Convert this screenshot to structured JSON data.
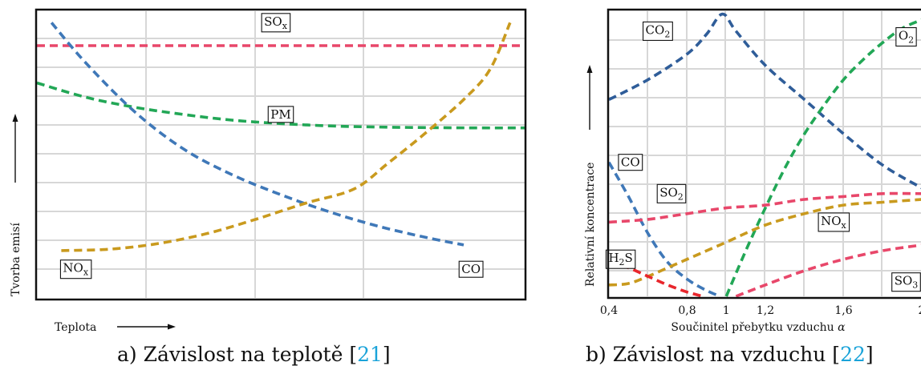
{
  "chart_data": [
    {
      "type": "line",
      "caption_prefix": "a) Závislost na teplotě [",
      "caption_ref": "21",
      "caption_suffix": "]",
      "xlabel": "Teplota",
      "ylabel": "Tvorba emisí",
      "x_ticks": [],
      "y_ticks": [],
      "xlim": [
        0,
        1
      ],
      "ylim": [
        0,
        1
      ],
      "grid": true,
      "series": [
        {
          "name": "SOx",
          "label_main": "SO",
          "label_sub": "x",
          "color": "#e8476a",
          "x": [
            0.0,
            1.0
          ],
          "y": [
            0.88,
            0.88
          ]
        },
        {
          "name": "PM",
          "label_main": "PM",
          "label_sub": "",
          "color": "#22a756",
          "x": [
            0.0,
            0.1,
            0.2,
            0.3,
            0.4,
            0.5,
            0.6,
            0.7,
            0.8,
            0.9,
            1.0
          ],
          "y": [
            0.75,
            0.7,
            0.665,
            0.64,
            0.62,
            0.608,
            0.6,
            0.596,
            0.594,
            0.593,
            0.593
          ]
        },
        {
          "name": "CO",
          "label_main": "CO",
          "label_sub": "",
          "color": "#3f78b8",
          "x": [
            0.03,
            0.1,
            0.2,
            0.3,
            0.4,
            0.5,
            0.6,
            0.7,
            0.8,
            0.875
          ],
          "y": [
            0.96,
            0.82,
            0.65,
            0.52,
            0.43,
            0.36,
            0.3,
            0.25,
            0.21,
            0.185
          ]
        },
        {
          "name": "NOx",
          "label_main": "NO",
          "label_sub": "x",
          "color": "#c99a1e",
          "x": [
            0.05,
            0.15,
            0.25,
            0.35,
            0.45,
            0.55,
            0.65,
            0.72,
            0.8,
            0.88,
            0.93,
            0.97
          ],
          "y": [
            0.165,
            0.17,
            0.19,
            0.225,
            0.275,
            0.33,
            0.38,
            0.47,
            0.58,
            0.7,
            0.8,
            0.96
          ]
        }
      ],
      "annotations": [
        {
          "main": "SO",
          "sub": "x",
          "x": 0.49,
          "y": 0.96
        },
        {
          "main": "PM",
          "sub": "",
          "x": 0.5,
          "y": 0.64
        },
        {
          "main": "NO",
          "sub": "x",
          "x": 0.08,
          "y": 0.1
        },
        {
          "main": "CO",
          "sub": "",
          "x": 0.89,
          "y": 0.1
        }
      ]
    },
    {
      "type": "line",
      "caption_prefix": "b) Závislost na vzduchu [",
      "caption_ref": "22",
      "caption_suffix": "]",
      "xlabel_main": "Součinitel přebytku vzduchu ",
      "xlabel_symbol": "α",
      "ylabel": "Relativní koncentrace",
      "xlim": [
        0.4,
        2.0
      ],
      "ylim": [
        0,
        1
      ],
      "x_ticks": [
        {
          "value": 0.4,
          "label": "0,4"
        },
        {
          "value": 0.8,
          "label": "0,8"
        },
        {
          "value": 1.0,
          "label": "1"
        },
        {
          "value": 1.2,
          "label": "1,2"
        },
        {
          "value": 1.6,
          "label": "1,6"
        },
        {
          "value": 2.0,
          "label": "2"
        }
      ],
      "grid": true,
      "series": [
        {
          "name": "CO2",
          "label_main": "CO",
          "label_sub": "2",
          "color": "#2f5d99",
          "x": [
            0.4,
            0.6,
            0.8,
            0.9,
            0.98,
            1.05,
            1.2,
            1.4,
            1.6,
            1.8,
            2.0
          ],
          "y": [
            0.69,
            0.76,
            0.85,
            0.92,
            0.99,
            0.93,
            0.81,
            0.69,
            0.57,
            0.46,
            0.38
          ]
        },
        {
          "name": "O2",
          "label_main": "O",
          "label_sub": "2",
          "color": "#22a756",
          "x": [
            1.0,
            1.1,
            1.2,
            1.3,
            1.4,
            1.5,
            1.6,
            1.7,
            1.8,
            1.9,
            2.0
          ],
          "y": [
            0.0,
            0.16,
            0.31,
            0.45,
            0.57,
            0.67,
            0.76,
            0.83,
            0.89,
            0.94,
            0.97
          ]
        },
        {
          "name": "CO",
          "label_main": "CO",
          "label_sub": "",
          "color": "#3f78b8",
          "x": [
            0.4,
            0.5,
            0.6,
            0.7,
            0.8,
            0.9,
            0.97
          ],
          "y": [
            0.47,
            0.35,
            0.22,
            0.12,
            0.06,
            0.02,
            0.0
          ]
        },
        {
          "name": "SO2",
          "label_main": "SO",
          "label_sub": "2",
          "color": "#e8476a",
          "x": [
            0.4,
            0.6,
            0.8,
            1.0,
            1.2,
            1.4,
            1.6,
            1.8,
            2.0
          ],
          "y": [
            0.26,
            0.27,
            0.29,
            0.31,
            0.32,
            0.34,
            0.35,
            0.36,
            0.36
          ]
        },
        {
          "name": "NOx",
          "label_main": "NO",
          "label_sub": "x",
          "color": "#c99a1e",
          "x": [
            0.4,
            0.5,
            0.6,
            0.7,
            0.8,
            0.9,
            1.0,
            1.2,
            1.4,
            1.6,
            1.8,
            2.0
          ],
          "y": [
            0.04,
            0.045,
            0.07,
            0.1,
            0.13,
            0.16,
            0.19,
            0.25,
            0.29,
            0.32,
            0.33,
            0.34
          ]
        },
        {
          "name": "H2S",
          "label_main": "H",
          "label_sub": "2",
          "label_tail": "S",
          "color": "#e8262c",
          "x": [
            0.4,
            0.5,
            0.6,
            0.7,
            0.8,
            0.88
          ],
          "y": [
            0.12,
            0.1,
            0.07,
            0.04,
            0.015,
            0.0
          ]
        },
        {
          "name": "SO3",
          "label_main": "SO",
          "label_sub": "3",
          "color": "#e8476a",
          "x": [
            1.05,
            1.2,
            1.4,
            1.6,
            1.8,
            2.0
          ],
          "y": [
            0.0,
            0.04,
            0.09,
            0.13,
            0.16,
            0.18
          ]
        }
      ],
      "annotations": [
        {
          "main": "CO",
          "sub": "2",
          "tail": "",
          "x": 0.65,
          "y": 0.93
        },
        {
          "main": "O",
          "sub": "2",
          "tail": "",
          "x": 1.92,
          "y": 0.91
        },
        {
          "main": "CO",
          "sub": "",
          "tail": "",
          "x": 0.51,
          "y": 0.47
        },
        {
          "main": "SO",
          "sub": "2",
          "tail": "",
          "x": 0.72,
          "y": 0.36
        },
        {
          "main": "NO",
          "sub": "x",
          "tail": "",
          "x": 1.55,
          "y": 0.26
        },
        {
          "main": "H",
          "sub": "2",
          "tail": "S",
          "x": 0.46,
          "y": 0.13
        },
        {
          "main": "SO",
          "sub": "3",
          "tail": "",
          "x": 1.92,
          "y": 0.05
        }
      ]
    }
  ]
}
